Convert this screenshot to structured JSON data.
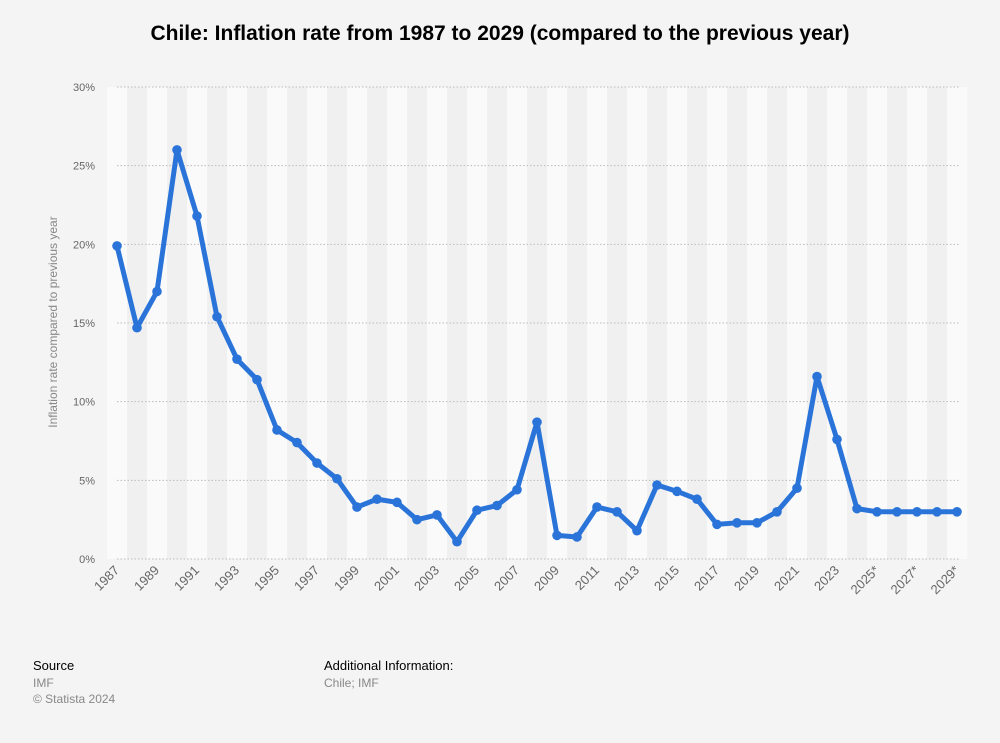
{
  "title": "Chile: Inflation rate from 1987 to 2029 (compared to the previous year)",
  "footer": {
    "source_heading": "Source",
    "source_name": "IMF",
    "copyright": "© Statista 2024",
    "additional_heading": "Additional Information:",
    "additional_text": "Chile; IMF"
  },
  "colors": {
    "line": "#2a74d9",
    "band_light": "#fafafa",
    "band_dark": "#f0f0f0",
    "grid": "#bbbbbb",
    "tick_text": "#666666"
  },
  "chart_data": {
    "type": "line",
    "title": "Chile: Inflation rate from 1987 to 2029 (compared to the previous year)",
    "xlabel": "",
    "ylabel": "Inflation rate compared to previous year",
    "ylim": [
      0,
      30
    ],
    "yticks": [
      "0%",
      "5%",
      "10%",
      "15%",
      "20%",
      "25%",
      "30%"
    ],
    "x_tick_labels": [
      "1987",
      "1989",
      "1991",
      "1993",
      "1995",
      "1997",
      "1999",
      "2001",
      "2003",
      "2005",
      "2007",
      "2009",
      "2011",
      "2013",
      "2015",
      "2017",
      "2019",
      "2021",
      "2023",
      "2025*",
      "2027*",
      "2029*"
    ],
    "grid": true,
    "x": [
      "1987",
      "1988",
      "1989",
      "1990",
      "1991",
      "1992",
      "1993",
      "1994",
      "1995",
      "1996",
      "1997",
      "1998",
      "1999",
      "2000",
      "2001",
      "2002",
      "2003",
      "2004",
      "2005",
      "2006",
      "2007",
      "2008",
      "2009",
      "2010",
      "2011",
      "2012",
      "2013",
      "2014",
      "2015",
      "2016",
      "2017",
      "2018",
      "2019",
      "2020",
      "2021",
      "2022",
      "2023",
      "2024*",
      "2025*",
      "2026*",
      "2027*",
      "2028*",
      "2029*"
    ],
    "series": [
      {
        "values": [
          19.9,
          14.7,
          17.0,
          26.0,
          21.8,
          15.4,
          12.7,
          11.4,
          8.2,
          7.4,
          6.1,
          5.1,
          3.3,
          3.8,
          3.6,
          2.5,
          2.8,
          1.1,
          3.1,
          3.4,
          4.4,
          8.7,
          1.5,
          1.4,
          3.3,
          3.0,
          1.8,
          4.7,
          4.3,
          3.8,
          2.2,
          2.3,
          2.3,
          3.0,
          4.5,
          11.6,
          7.6,
          3.2,
          3.0,
          3.0,
          3.0,
          3.0,
          3.0
        ]
      }
    ]
  }
}
